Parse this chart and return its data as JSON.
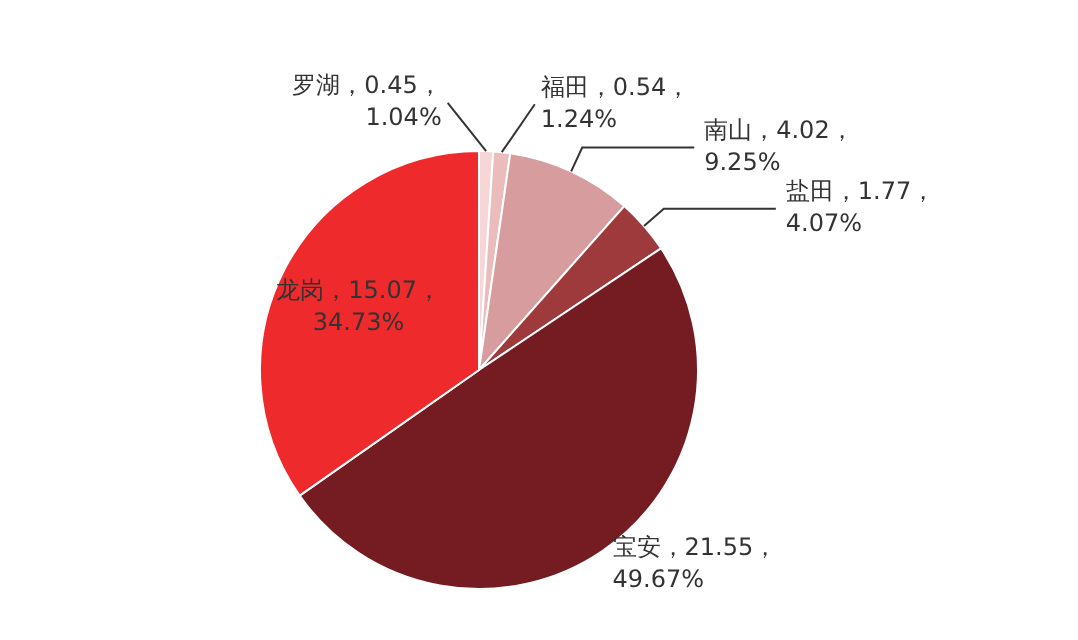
{
  "chart_data": {
    "type": "pie",
    "categories": [
      "罗湖",
      "福田",
      "南山",
      "盐田",
      "宝安",
      "龙岗"
    ],
    "values": [
      0.45,
      0.54,
      4.02,
      1.77,
      21.55,
      15.07
    ],
    "value_labels": [
      "，0.45，\n1.04%",
      "，0.54，\n1.24%",
      "，4.02，\n9.25%",
      "，1.77，\n4.07%",
      "，21.55，\n49.67%",
      "，15.07，\n34.73%"
    ],
    "colors": [
      "#f6d6d6",
      "#ebbcbc",
      "#d69c9e",
      "#9e3a3c",
      "#741c22",
      "#ee2a2c"
    ],
    "legend": false
  }
}
